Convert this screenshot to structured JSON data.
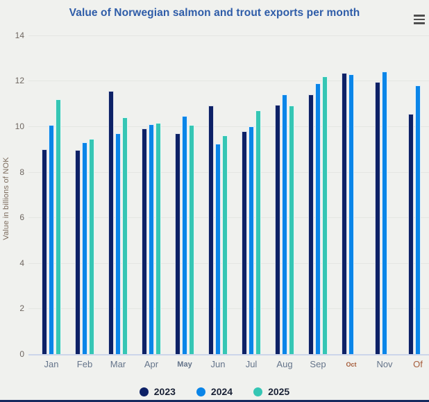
{
  "chart_data": {
    "type": "bar",
    "title": "Value of Norwegian salmon and trout exports per month",
    "ylabel": "Value in billions of NOK",
    "ylim": [
      0,
      14
    ],
    "grid": true,
    "legend_position": "bottom",
    "background_color": "#f0f1ee",
    "title_color": "#2e5ca8",
    "categories": [
      "Jan",
      "Feb",
      "Mar",
      "Apr",
      "May",
      "Jun",
      "Jul",
      "Aug",
      "Sep",
      "Oct",
      "Nov",
      "Of"
    ],
    "y_ticks": [
      0,
      2,
      4,
      6,
      8,
      10,
      12,
      14
    ],
    "series": [
      {
        "name": "2023",
        "color": "#0d2166",
        "values": [
          9.0,
          8.95,
          11.55,
          9.9,
          9.7,
          10.9,
          9.8,
          10.95,
          11.4,
          12.35,
          11.95,
          10.55
        ]
      },
      {
        "name": "2024",
        "color": "#0a85e8",
        "values": [
          10.05,
          9.3,
          9.7,
          10.1,
          10.45,
          9.25,
          10.0,
          11.4,
          11.9,
          12.3,
          12.4,
          11.8
        ]
      },
      {
        "name": "2025",
        "color": "#35c6b4",
        "values": [
          11.2,
          9.45,
          10.4,
          10.15,
          10.05,
          9.6,
          10.7,
          10.9,
          12.2,
          null,
          null,
          null
        ]
      }
    ],
    "x_label_color": "#64748a",
    "accent_label_color": "#a55c3a",
    "accent_labels": [
      "Oct",
      "Of"
    ],
    "small_labels": [
      "Oct"
    ],
    "medium_labels": [
      "May"
    ]
  },
  "controls": {
    "context_menu_icon": "hamburger-icon"
  }
}
